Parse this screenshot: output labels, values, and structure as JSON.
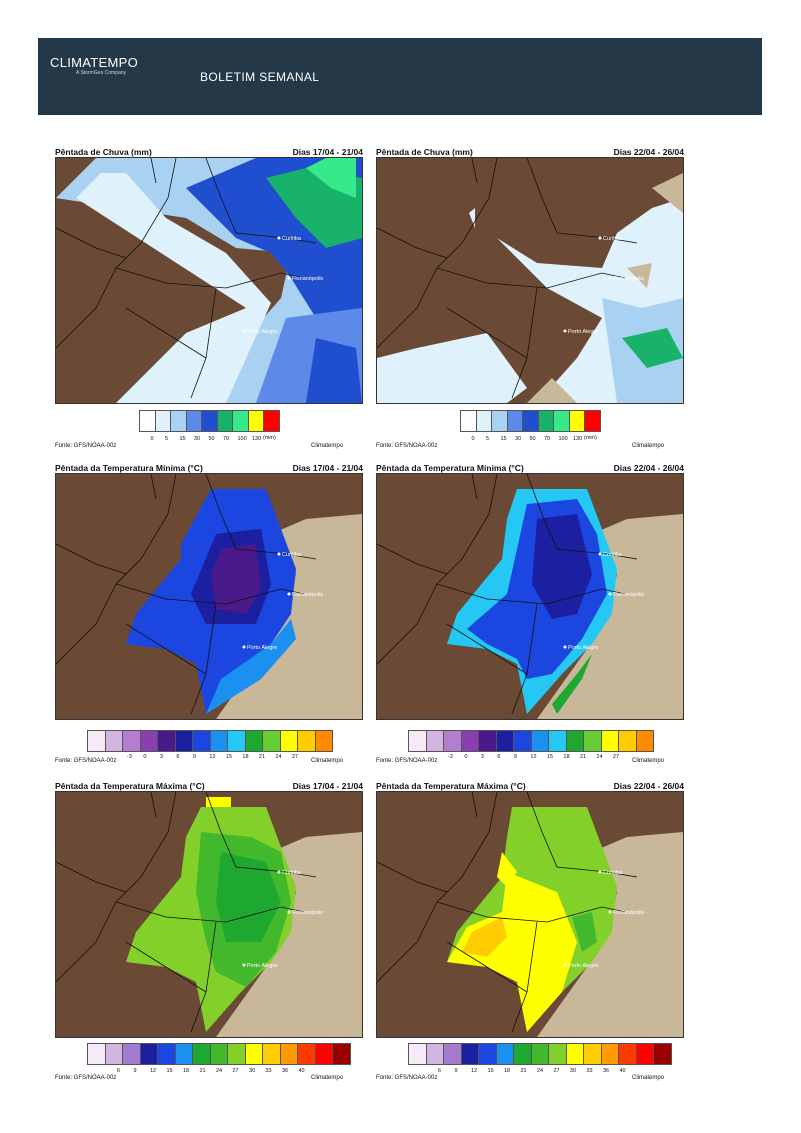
{
  "header": {
    "logo": "CLIMATEMPO",
    "logo_sub": "A StormGeo Company",
    "title": "BOLETIM SEMANAL"
  },
  "cities": [
    "Curitiba",
    "Florianópolis",
    "Porto Alegre"
  ],
  "source": "Fonte: GFS/NOAA-00z",
  "brand": "Climatempo",
  "panels": [
    {
      "title": "Pêntada de Chuva (mm)",
      "dates": "Dias 17/04 - 21/04"
    },
    {
      "title": "Pêntada de Chuva (mm)",
      "dates": "Dias 22/04 - 26/04"
    },
    {
      "title": "Pêntada da Temperatura Mínima (°C)",
      "dates": "Dias 17/04 - 21/04"
    },
    {
      "title": "Pêntada da Temperatura Mínima (°C)",
      "dates": "Dias 22/04 - 26/04"
    },
    {
      "title": "Pêntada da Temperatura Máxima (°C)",
      "dates": "Dias 17/04 - 21/04"
    },
    {
      "title": "Pêntada da Temperatura Máxima (°C)",
      "dates": "Dias 22/04 - 26/04"
    }
  ],
  "legends": {
    "rain": {
      "ticks": [
        "0",
        "5",
        "15",
        "30",
        "50",
        "70",
        "100",
        "130"
      ],
      "unit": "(mm)",
      "colors": [
        "#ffffff",
        "#dff2fb",
        "#a9d2f2",
        "#5d8ae8",
        "#1f4fcf",
        "#18b26b",
        "#36ea8c",
        "#ffff00",
        "#ff0000"
      ]
    },
    "tmin": {
      "ticks": [
        "-3",
        "0",
        "3",
        "6",
        "9",
        "12",
        "15",
        "18",
        "21",
        "24",
        "27"
      ],
      "colors": [
        "#f6e9f8",
        "#d4b4e0",
        "#b37ed0",
        "#8a3fb0",
        "#4a1a8a",
        "#1b1fa0",
        "#1b46e0",
        "#1b90f0",
        "#25c8f5",
        "#1fa830",
        "#66cc33",
        "#ffff00",
        "#ffcc00",
        "#ff8a00"
      ]
    },
    "tmax": {
      "ticks": [
        "6",
        "9",
        "12",
        "15",
        "18",
        "21",
        "24",
        "27",
        "30",
        "33",
        "36",
        "40"
      ],
      "colors": [
        "#f6e9f8",
        "#d4b4e0",
        "#a37cd0",
        "#1b1fa0",
        "#1b46e0",
        "#1b90f0",
        "#1fa830",
        "#42b82c",
        "#84d02a",
        "#ffff00",
        "#ffcc00",
        "#ff9a00",
        "#ff3a00",
        "#ff0000",
        "#9a0000"
      ]
    }
  }
}
